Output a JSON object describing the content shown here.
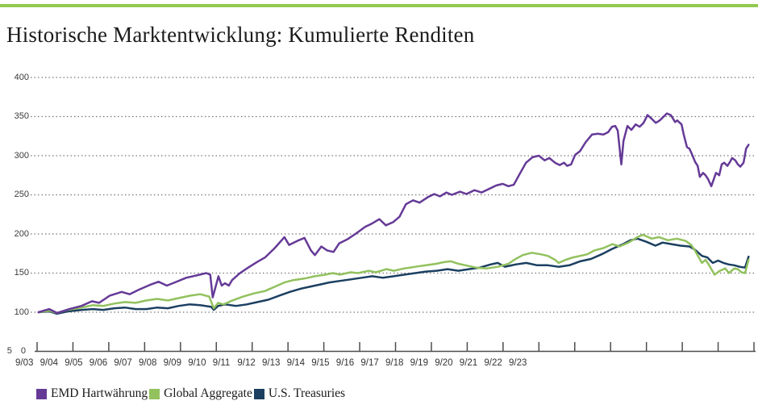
{
  "page": {
    "title": "Historische Marktentwicklung: Kumulierte Renditen",
    "top_rule_color": "#92c94f"
  },
  "chart_data": {
    "type": "line",
    "title": "Historische Marktentwicklung: Kumulierte Renditen",
    "grid": "dotted horizontal",
    "legend_position": "bottom",
    "colors": {
      "axis": "#4d4d4d",
      "gridline": "#6e6e6e",
      "tick_label": "#333333"
    },
    "x_axis": {
      "tick_labels": [
        "9/03",
        "9/04",
        "9/05",
        "9/06",
        "9/07",
        "9/08",
        "9/09",
        "9/10",
        "9/11",
        "9/12",
        "9/13",
        "9/14",
        "9/15",
        "9/16",
        "9/17",
        "9/18",
        "9/19",
        "9/20",
        "9/21",
        "9/22",
        "9/23"
      ],
      "start_year": 2003.75,
      "end_year": 2023.75,
      "num_ticks": 21
    },
    "y_axis": {
      "min": 50,
      "max": 400,
      "gridline_values": [
        400,
        350,
        300,
        250,
        200,
        150,
        100
      ],
      "tick_labels": [
        "400",
        "350",
        "300",
        "250",
        "200",
        "150",
        "100"
      ],
      "baseline_label": "5 0",
      "baseline_value": 50
    },
    "series": [
      {
        "name": "EMD Hartwährung",
        "color": "#653a97",
        "points": [
          [
            2003.79,
            100
          ],
          [
            2004.09,
            104
          ],
          [
            2004.31,
            99
          ],
          [
            2004.65,
            104
          ],
          [
            2004.99,
            108
          ],
          [
            2005.28,
            114
          ],
          [
            2005.48,
            112
          ],
          [
            2005.77,
            121
          ],
          [
            2006.11,
            126
          ],
          [
            2006.33,
            123
          ],
          [
            2006.6,
            129
          ],
          [
            2006.9,
            135
          ],
          [
            2007.14,
            139
          ],
          [
            2007.37,
            134
          ],
          [
            2007.59,
            138
          ],
          [
            2007.91,
            144
          ],
          [
            2008.2,
            147
          ],
          [
            2008.47,
            150
          ],
          [
            2008.58,
            148
          ],
          [
            2008.65,
            119
          ],
          [
            2008.81,
            146
          ],
          [
            2008.9,
            134
          ],
          [
            2008.99,
            137
          ],
          [
            2009.1,
            134
          ],
          [
            2009.19,
            141
          ],
          [
            2009.41,
            150
          ],
          [
            2009.64,
            157
          ],
          [
            2009.88,
            164
          ],
          [
            2010.11,
            170
          ],
          [
            2010.38,
            182
          ],
          [
            2010.65,
            196
          ],
          [
            2010.78,
            186
          ],
          [
            2011.05,
            192
          ],
          [
            2011.21,
            195
          ],
          [
            2011.39,
            179
          ],
          [
            2011.5,
            173
          ],
          [
            2011.68,
            184
          ],
          [
            2011.84,
            179
          ],
          [
            2012.02,
            177
          ],
          [
            2012.18,
            188
          ],
          [
            2012.4,
            193
          ],
          [
            2012.63,
            200
          ],
          [
            2012.9,
            209
          ],
          [
            2013.08,
            213
          ],
          [
            2013.3,
            219
          ],
          [
            2013.48,
            211
          ],
          [
            2013.68,
            215
          ],
          [
            2013.86,
            222
          ],
          [
            2014.04,
            238
          ],
          [
            2014.24,
            243
          ],
          [
            2014.42,
            240
          ],
          [
            2014.65,
            247
          ],
          [
            2014.83,
            251
          ],
          [
            2014.99,
            248
          ],
          [
            2015.17,
            253
          ],
          [
            2015.32,
            250
          ],
          [
            2015.55,
            254
          ],
          [
            2015.73,
            251
          ],
          [
            2015.95,
            256
          ],
          [
            2016.15,
            253
          ],
          [
            2016.33,
            257
          ],
          [
            2016.56,
            262
          ],
          [
            2016.74,
            264
          ],
          [
            2016.9,
            261
          ],
          [
            2017.05,
            263
          ],
          [
            2017.23,
            278
          ],
          [
            2017.39,
            291
          ],
          [
            2017.57,
            298
          ],
          [
            2017.75,
            300
          ],
          [
            2017.91,
            294
          ],
          [
            2018.04,
            297
          ],
          [
            2018.2,
            291
          ],
          [
            2018.33,
            288
          ],
          [
            2018.45,
            291
          ],
          [
            2018.54,
            287
          ],
          [
            2018.65,
            289
          ],
          [
            2018.76,
            301
          ],
          [
            2018.9,
            306
          ],
          [
            2019.05,
            317
          ],
          [
            2019.23,
            327
          ],
          [
            2019.39,
            328
          ],
          [
            2019.55,
            327
          ],
          [
            2019.68,
            330
          ],
          [
            2019.79,
            337
          ],
          [
            2019.88,
            338
          ],
          [
            2019.95,
            332
          ],
          [
            2020.05,
            289
          ],
          [
            2020.11,
            319
          ],
          [
            2020.22,
            338
          ],
          [
            2020.33,
            333
          ],
          [
            2020.45,
            340
          ],
          [
            2020.56,
            337
          ],
          [
            2020.67,
            342
          ],
          [
            2020.78,
            352
          ],
          [
            2020.9,
            347
          ],
          [
            2021.01,
            342
          ],
          [
            2021.12,
            345
          ],
          [
            2021.23,
            350
          ],
          [
            2021.32,
            354
          ],
          [
            2021.43,
            352
          ],
          [
            2021.55,
            343
          ],
          [
            2021.61,
            345
          ],
          [
            2021.73,
            340
          ],
          [
            2021.79,
            327
          ],
          [
            2021.88,
            311
          ],
          [
            2021.95,
            309
          ],
          [
            2022.02,
            302
          ],
          [
            2022.11,
            292
          ],
          [
            2022.18,
            287
          ],
          [
            2022.24,
            273
          ],
          [
            2022.33,
            278
          ],
          [
            2022.4,
            275
          ],
          [
            2022.47,
            270
          ],
          [
            2022.56,
            261
          ],
          [
            2022.63,
            270
          ],
          [
            2022.69,
            278
          ],
          [
            2022.78,
            275
          ],
          [
            2022.85,
            289
          ],
          [
            2022.92,
            291
          ],
          [
            2023.01,
            287
          ],
          [
            2023.08,
            292
          ],
          [
            2023.14,
            297
          ],
          [
            2023.23,
            294
          ],
          [
            2023.3,
            289
          ],
          [
            2023.37,
            286
          ],
          [
            2023.46,
            291
          ],
          [
            2023.53,
            309
          ],
          [
            2023.6,
            314
          ]
        ]
      },
      {
        "name": "Global Aggregate",
        "color": "#92c15e",
        "points": [
          [
            2003.79,
            100
          ],
          [
            2004.1,
            102
          ],
          [
            2004.3,
            99
          ],
          [
            2004.6,
            103
          ],
          [
            2005.0,
            106
          ],
          [
            2005.3,
            109
          ],
          [
            2005.6,
            108
          ],
          [
            2005.9,
            111
          ],
          [
            2006.2,
            113
          ],
          [
            2006.5,
            112
          ],
          [
            2006.8,
            115
          ],
          [
            2007.1,
            117
          ],
          [
            2007.4,
            115
          ],
          [
            2007.7,
            118
          ],
          [
            2008.0,
            121
          ],
          [
            2008.3,
            123
          ],
          [
            2008.55,
            120
          ],
          [
            2008.68,
            105
          ],
          [
            2008.8,
            112
          ],
          [
            2008.95,
            110
          ],
          [
            2009.2,
            115
          ],
          [
            2009.5,
            120
          ],
          [
            2009.8,
            124
          ],
          [
            2010.1,
            127
          ],
          [
            2010.4,
            133
          ],
          [
            2010.65,
            138
          ],
          [
            2010.9,
            141
          ],
          [
            2011.2,
            143
          ],
          [
            2011.5,
            146
          ],
          [
            2011.8,
            148
          ],
          [
            2012.0,
            150
          ],
          [
            2012.2,
            148
          ],
          [
            2012.5,
            151
          ],
          [
            2012.7,
            150
          ],
          [
            2013.0,
            153
          ],
          [
            2013.2,
            151
          ],
          [
            2013.5,
            155
          ],
          [
            2013.7,
            153
          ],
          [
            2014.0,
            156
          ],
          [
            2014.3,
            158
          ],
          [
            2014.6,
            160
          ],
          [
            2014.9,
            162
          ],
          [
            2015.1,
            164
          ],
          [
            2015.3,
            165
          ],
          [
            2015.5,
            162
          ],
          [
            2015.8,
            159
          ],
          [
            2016.0,
            157
          ],
          [
            2016.3,
            156
          ],
          [
            2016.6,
            158
          ],
          [
            2016.9,
            162
          ],
          [
            2017.1,
            168
          ],
          [
            2017.3,
            173
          ],
          [
            2017.55,
            176
          ],
          [
            2017.8,
            174
          ],
          [
            2018.0,
            172
          ],
          [
            2018.2,
            167
          ],
          [
            2018.3,
            163
          ],
          [
            2018.5,
            167
          ],
          [
            2018.7,
            170
          ],
          [
            2018.9,
            172
          ],
          [
            2019.1,
            174
          ],
          [
            2019.3,
            179
          ],
          [
            2019.55,
            182
          ],
          [
            2019.8,
            187
          ],
          [
            2020.0,
            184
          ],
          [
            2020.25,
            189
          ],
          [
            2020.5,
            196
          ],
          [
            2020.65,
            199
          ],
          [
            2020.9,
            194
          ],
          [
            2021.1,
            196
          ],
          [
            2021.35,
            192
          ],
          [
            2021.6,
            194
          ],
          [
            2021.85,
            191
          ],
          [
            2022.0,
            186
          ],
          [
            2022.1,
            179
          ],
          [
            2022.3,
            163
          ],
          [
            2022.4,
            167
          ],
          [
            2022.5,
            160
          ],
          [
            2022.65,
            148
          ],
          [
            2022.8,
            153
          ],
          [
            2022.95,
            156
          ],
          [
            2023.05,
            150
          ],
          [
            2023.2,
            156
          ],
          [
            2023.3,
            155
          ],
          [
            2023.4,
            151
          ],
          [
            2023.5,
            150
          ],
          [
            2023.6,
            167
          ]
        ]
      },
      {
        "name": "U.S. Treasuries",
        "color": "#1b3f61",
        "points": [
          [
            2003.79,
            100
          ],
          [
            2004.1,
            101
          ],
          [
            2004.3,
            98
          ],
          [
            2004.6,
            101
          ],
          [
            2005.0,
            103
          ],
          [
            2005.3,
            104
          ],
          [
            2005.6,
            103
          ],
          [
            2005.9,
            105
          ],
          [
            2006.2,
            106
          ],
          [
            2006.5,
            104
          ],
          [
            2006.8,
            104
          ],
          [
            2007.1,
            106
          ],
          [
            2007.4,
            105
          ],
          [
            2007.7,
            108
          ],
          [
            2008.0,
            110
          ],
          [
            2008.3,
            109
          ],
          [
            2008.6,
            107
          ],
          [
            2008.68,
            103
          ],
          [
            2008.8,
            108
          ],
          [
            2009.0,
            110
          ],
          [
            2009.3,
            108
          ],
          [
            2009.6,
            110
          ],
          [
            2009.9,
            113
          ],
          [
            2010.2,
            116
          ],
          [
            2010.5,
            121
          ],
          [
            2010.8,
            126
          ],
          [
            2011.1,
            130
          ],
          [
            2011.4,
            133
          ],
          [
            2011.7,
            136
          ],
          [
            2011.9,
            138
          ],
          [
            2012.2,
            140
          ],
          [
            2012.5,
            142
          ],
          [
            2012.8,
            144
          ],
          [
            2013.1,
            146
          ],
          [
            2013.4,
            144
          ],
          [
            2013.7,
            146
          ],
          [
            2014.0,
            148
          ],
          [
            2014.3,
            150
          ],
          [
            2014.6,
            152
          ],
          [
            2014.9,
            153
          ],
          [
            2015.2,
            155
          ],
          [
            2015.5,
            153
          ],
          [
            2015.8,
            155
          ],
          [
            2016.1,
            157
          ],
          [
            2016.4,
            161
          ],
          [
            2016.6,
            163
          ],
          [
            2016.8,
            158
          ],
          [
            2017.1,
            161
          ],
          [
            2017.4,
            163
          ],
          [
            2017.7,
            160
          ],
          [
            2018.0,
            160
          ],
          [
            2018.3,
            158
          ],
          [
            2018.6,
            160
          ],
          [
            2018.9,
            165
          ],
          [
            2019.2,
            168
          ],
          [
            2019.5,
            174
          ],
          [
            2019.8,
            181
          ],
          [
            2020.1,
            187
          ],
          [
            2020.3,
            192
          ],
          [
            2020.5,
            194
          ],
          [
            2020.75,
            190
          ],
          [
            2021.0,
            185
          ],
          [
            2021.2,
            189
          ],
          [
            2021.45,
            187
          ],
          [
            2021.7,
            185
          ],
          [
            2021.95,
            184
          ],
          [
            2022.1,
            180
          ],
          [
            2022.3,
            172
          ],
          [
            2022.45,
            170
          ],
          [
            2022.6,
            163
          ],
          [
            2022.75,
            166
          ],
          [
            2022.9,
            163
          ],
          [
            2023.05,
            161
          ],
          [
            2023.2,
            160
          ],
          [
            2023.35,
            158
          ],
          [
            2023.5,
            157
          ],
          [
            2023.6,
            171
          ]
        ]
      }
    ]
  }
}
